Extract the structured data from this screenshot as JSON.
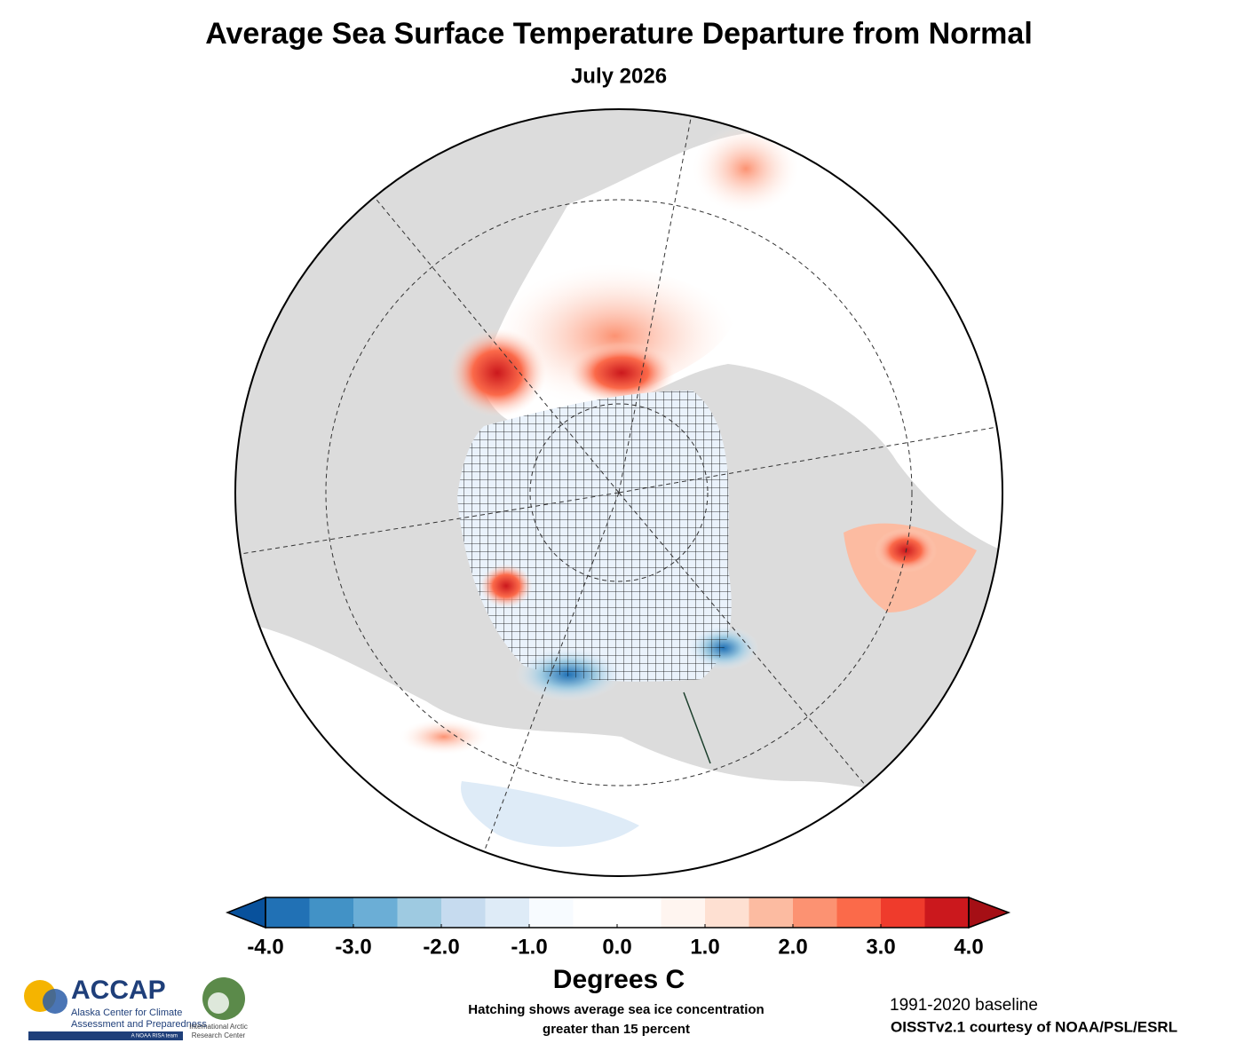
{
  "title": "Average Sea Surface Temperature Departure from Normal",
  "subtitle": "July 2026",
  "colorbar": {
    "range": [
      -4,
      4
    ],
    "colors": [
      "#2171b5",
      "#4292c6",
      "#6baed6",
      "#9ecae1",
      "#c6dbef",
      "#deebf7",
      "#f7fbff",
      "#ffffff",
      "#ffffff",
      "#fff5f0",
      "#fee0d2",
      "#fcbba1",
      "#fc9272",
      "#fb6a4a",
      "#ef3b2c",
      "#cb181d"
    ],
    "extend_colors": [
      "#08519c",
      "#a50f15"
    ],
    "ticks": [
      {
        "value": -4,
        "label": "-4.0"
      },
      {
        "value": -3,
        "label": "-3.0"
      },
      {
        "value": -2,
        "label": "-2.0"
      },
      {
        "value": -1,
        "label": "-1.0"
      },
      {
        "value": 0,
        "label": "0.0"
      },
      {
        "value": 1,
        "label": "1.0"
      },
      {
        "value": 2,
        "label": "2.0"
      },
      {
        "value": 3,
        "label": "3.0"
      },
      {
        "value": 4,
        "label": "4.0"
      }
    ],
    "label": "Degrees C"
  },
  "notes": {
    "hatching": [
      "Hatching shows average sea ice concentration",
      "greater than 15 percent"
    ],
    "baseline": "1991-2020 baseline",
    "courtesy": "OISSTv2.1 courtesy of NOAA/PSL/ESRL"
  },
  "logos": {
    "accap": {
      "name": "ACCAP",
      "lines": [
        "Alaska Center for Climate",
        "Assessment and Preparedness"
      ],
      "tag": "A NOAA RISA team"
    },
    "iarc": {
      "lines": [
        "International Arctic",
        "Research Center"
      ]
    }
  }
}
